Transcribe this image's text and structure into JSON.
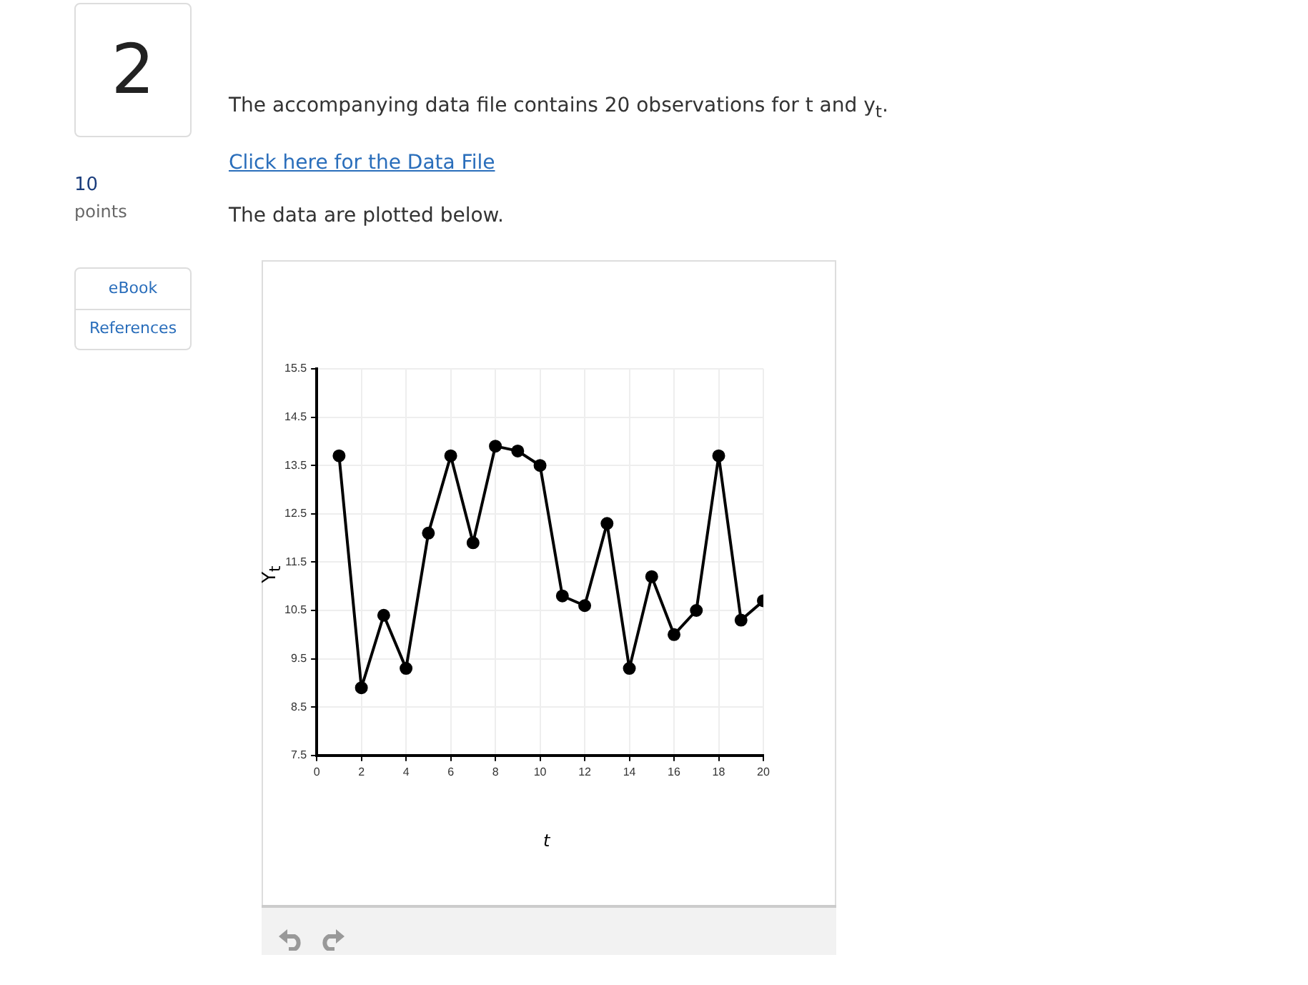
{
  "chart_data": {
    "type": "line",
    "xlabel": "t",
    "ylabel": "Y$_{t}$",
    "x": [
      1,
      2,
      3,
      4,
      5,
      6,
      7,
      8,
      9,
      10,
      11,
      12,
      13,
      14,
      15,
      16,
      17,
      18,
      19,
      20
    ],
    "series": [
      {
        "color": "#000000",
        "values": [
          13.7,
          8.9,
          10.4,
          9.3,
          12.1,
          13.7,
          11.9,
          13.9,
          13.8,
          13.5,
          10.8,
          10.6,
          12.3,
          9.3,
          11.2,
          10.0,
          10.5,
          13.7,
          10.3,
          10.7
        ]
      }
    ],
    "xlim": [
      0,
      20
    ],
    "xticks": [
      0,
      2,
      4,
      6,
      8,
      10,
      12,
      14,
      16,
      18,
      20
    ],
    "ylim": [
      7.5,
      15.5
    ],
    "yticks": [
      7.5,
      8.5,
      9.5,
      10.5,
      11.5,
      12.5,
      13.5,
      14.5,
      15.5
    ],
    "grid": true,
    "marker": "circle",
    "line_style": "solid",
    "legend": false,
    "annotations": [
      "2",
      "10",
      "points",
      "eBook",
      "References",
      "The accompanying data file contains 20 observations for t and y$_{t}$.",
      "Click here for the Data File",
      "The data are plotted below."
    ]
  }
}
